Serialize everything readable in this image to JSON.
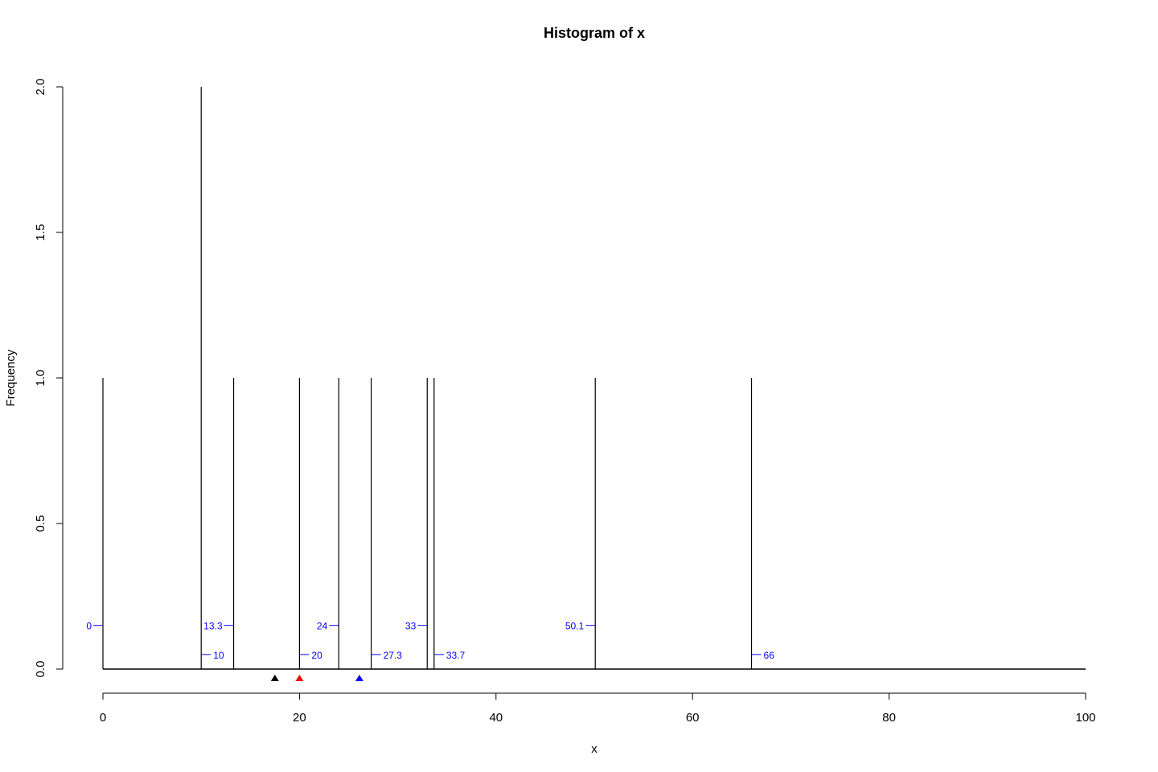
{
  "chart_data": {
    "type": "bar",
    "title": "Histogram of x",
    "xlabel": "x",
    "ylabel": "Frequency",
    "xlim": [
      0,
      100
    ],
    "ylim": [
      0,
      2
    ],
    "xticks": [
      0,
      20,
      40,
      60,
      80,
      100
    ],
    "yticks": [
      0.0,
      0.5,
      1.0,
      1.5,
      2.0
    ],
    "ytick_labels": [
      "0.0",
      "0.5",
      "1.0",
      "1.5",
      "2.0"
    ],
    "bars": [
      {
        "x": 0,
        "height": 1
      },
      {
        "x": 10,
        "height": 2
      },
      {
        "x": 13.3,
        "height": 1
      },
      {
        "x": 20,
        "height": 1
      },
      {
        "x": 24,
        "height": 1
      },
      {
        "x": 27.3,
        "height": 1
      },
      {
        "x": 33,
        "height": 1
      },
      {
        "x": 33.7,
        "height": 1
      },
      {
        "x": 50.1,
        "height": 1
      },
      {
        "x": 66,
        "height": 1
      }
    ],
    "annotations": [
      {
        "x": 0,
        "label": "0",
        "side": "left",
        "level": 0.15
      },
      {
        "x": 10,
        "label": "10",
        "side": "right",
        "level": 0.05
      },
      {
        "x": 13.3,
        "label": "13.3",
        "side": "left",
        "level": 0.15
      },
      {
        "x": 20,
        "label": "20",
        "side": "right",
        "level": 0.05
      },
      {
        "x": 24,
        "label": "24",
        "side": "left",
        "level": 0.15
      },
      {
        "x": 27.3,
        "label": "27.3",
        "side": "right",
        "level": 0.05
      },
      {
        "x": 33,
        "label": "33",
        "side": "left",
        "level": 0.15
      },
      {
        "x": 33.7,
        "label": "33.7",
        "side": "right",
        "level": 0.05
      },
      {
        "x": 50.1,
        "label": "50.1",
        "side": "left",
        "level": 0.15
      },
      {
        "x": 66,
        "label": "66",
        "side": "right",
        "level": 0.05
      }
    ],
    "markers": [
      {
        "x": 17.5,
        "color": "#000000",
        "name": "black-triangle-marker"
      },
      {
        "x": 20,
        "color": "#ff0000",
        "name": "red-triangle-marker"
      },
      {
        "x": 26.1,
        "color": "#0000ff",
        "name": "blue-triangle-marker"
      }
    ],
    "annotation_color": "#0000ff",
    "line_color": "#000000"
  }
}
